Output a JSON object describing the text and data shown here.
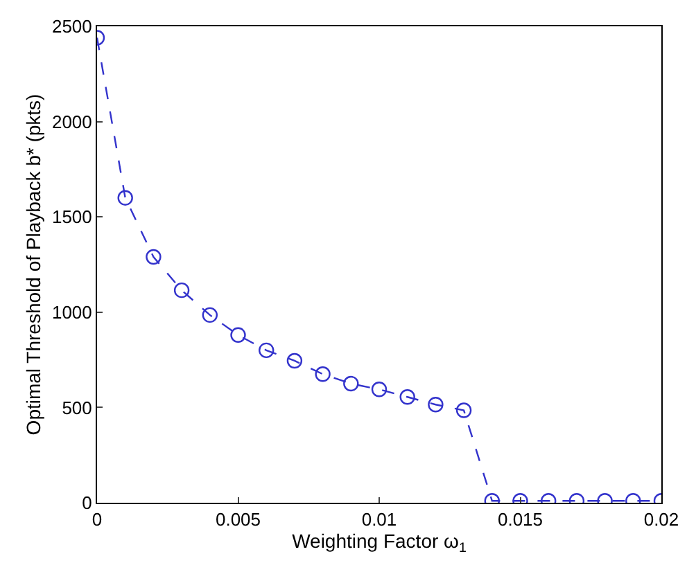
{
  "chart_data": {
    "type": "line",
    "xlabel": "Weighting Factor ω$_{1}$",
    "ylabel": "Optimal Threshold of Playback b* (pkts)",
    "x": [
      0,
      0.001,
      0.002,
      0.003,
      0.004,
      0.005,
      0.006,
      0.007,
      0.008,
      0.009,
      0.01,
      0.011,
      0.012,
      0.013,
      0.014,
      0.015,
      0.016,
      0.017,
      0.018,
      0.019,
      0.02
    ],
    "series": [
      {
        "color": "#3333cc",
        "values": [
          2440,
          1600,
          1290,
          1115,
          985,
          880,
          800,
          745,
          675,
          625,
          595,
          555,
          515,
          485,
          10,
          10,
          10,
          10,
          10,
          10,
          10
        ]
      }
    ],
    "xlim": [
      0,
      0.02
    ],
    "xticks": [
      0,
      0.005,
      0.01,
      0.015,
      0.02
    ],
    "ylim": [
      0,
      2500
    ],
    "yticks": [
      0,
      500,
      1000,
      1500,
      2000,
      2500
    ],
    "legend": false,
    "marker": "circle",
    "line_style": "dashed"
  }
}
